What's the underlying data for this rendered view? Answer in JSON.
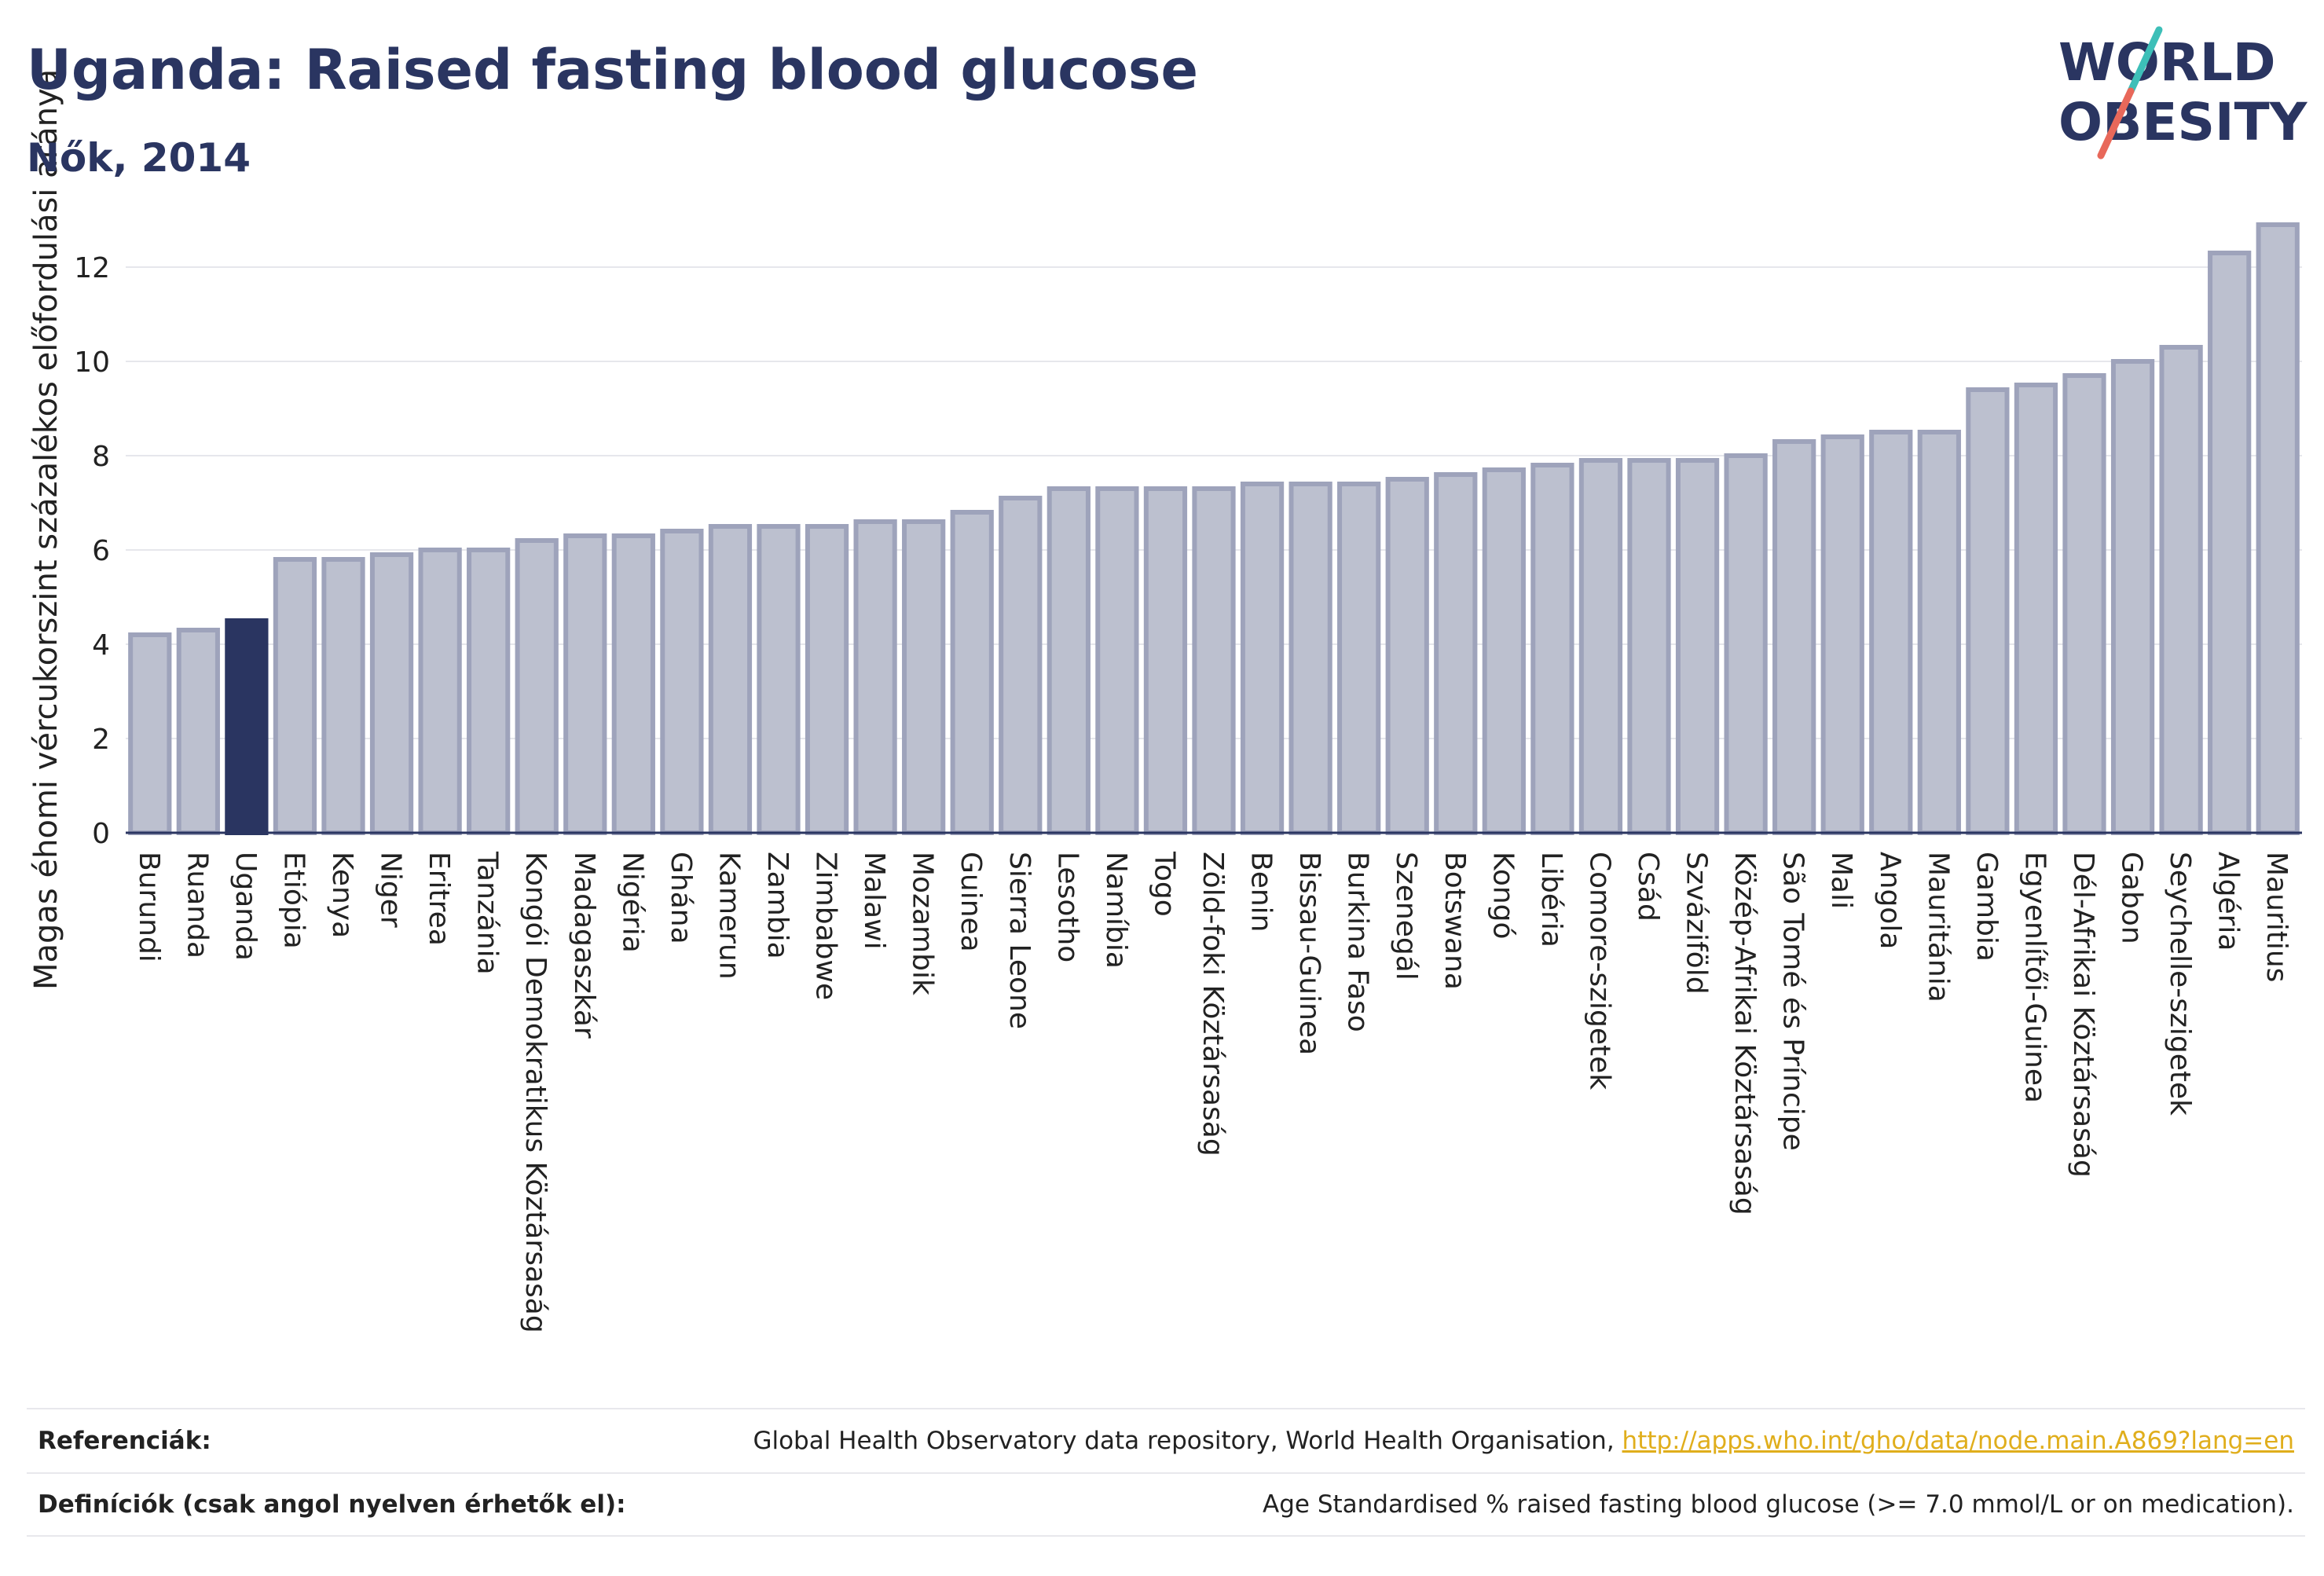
{
  "header": {
    "title": "Uganda: Raised fasting blood glucose",
    "subtitle": "Nők, 2014"
  },
  "logo": {
    "line1": "WORLD",
    "line2": "OBESITY"
  },
  "colors": {
    "title": "#2a3561",
    "highlight_bar": "#2a3561",
    "bar_fill": "#bcc0cf",
    "bar_stroke": "#9ea3bb",
    "link": "#e0ae1c",
    "logo_teal": "#3dbfb8",
    "logo_red": "#e8685a"
  },
  "chart_data": {
    "type": "bar",
    "ylabel": "Magas éhomi vércukorszint százalékos előfordulási aránya",
    "xlabel": "",
    "ylim": [
      0,
      13.5
    ],
    "yticks": [
      0,
      2,
      4,
      6,
      8,
      10,
      12
    ],
    "grid": true,
    "highlight": "Uganda",
    "categories": [
      "Burundi",
      "Ruanda",
      "Uganda",
      "Etiópia",
      "Kenya",
      "Niger",
      "Eritrea",
      "Tanzánia",
      "Kongói Demokratikus Köztársaság",
      "Madagaszkár",
      "Nigéria",
      "Ghána",
      "Kamerun",
      "Zambia",
      "Zimbabwe",
      "Malawi",
      "Mozambik",
      "Guinea",
      "Sierra Leone",
      "Lesotho",
      "Namíbia",
      "Togo",
      "Zöld-foki Köztársaság",
      "Benin",
      "Bissau-Guinea",
      "Burkina Faso",
      "Szenegál",
      "Botswana",
      "Kongó",
      "Libéria",
      "Comore-szigetek",
      "Csád",
      "Szváziföld",
      "Közép-Afrikai Köztársaság",
      "São Tomé és Príncipe",
      "Mali",
      "Angola",
      "Mauritánia",
      "Gambia",
      "Egyenlítői-Guinea",
      "Dél-Afrikai Köztársaság",
      "Gabon",
      "Seychelle-szigetek",
      "Algéria",
      "Mauritius"
    ],
    "values": [
      4.2,
      4.3,
      4.5,
      5.8,
      5.8,
      5.9,
      6.0,
      6.0,
      6.2,
      6.3,
      6.3,
      6.4,
      6.5,
      6.5,
      6.5,
      6.6,
      6.6,
      6.8,
      7.1,
      7.3,
      7.3,
      7.3,
      7.3,
      7.4,
      7.4,
      7.4,
      7.5,
      7.6,
      7.7,
      7.8,
      7.9,
      7.9,
      7.9,
      8.0,
      8.3,
      8.4,
      8.5,
      8.5,
      9.4,
      9.5,
      9.7,
      10.0,
      10.3,
      12.3,
      12.9
    ]
  },
  "footer": {
    "references_label": "Referenciák:",
    "references_text": "Global Health Observatory data repository, World Health Organisation,",
    "references_link": "http://apps.who.int/gho/data/node.main.A869?lang=en",
    "definitions_label": "Definíciók (csak angol nyelven érhetők el):",
    "definitions_text": "Age Standardised % raised fasting blood glucose (>= 7.0 mmol/L or on medication)."
  }
}
